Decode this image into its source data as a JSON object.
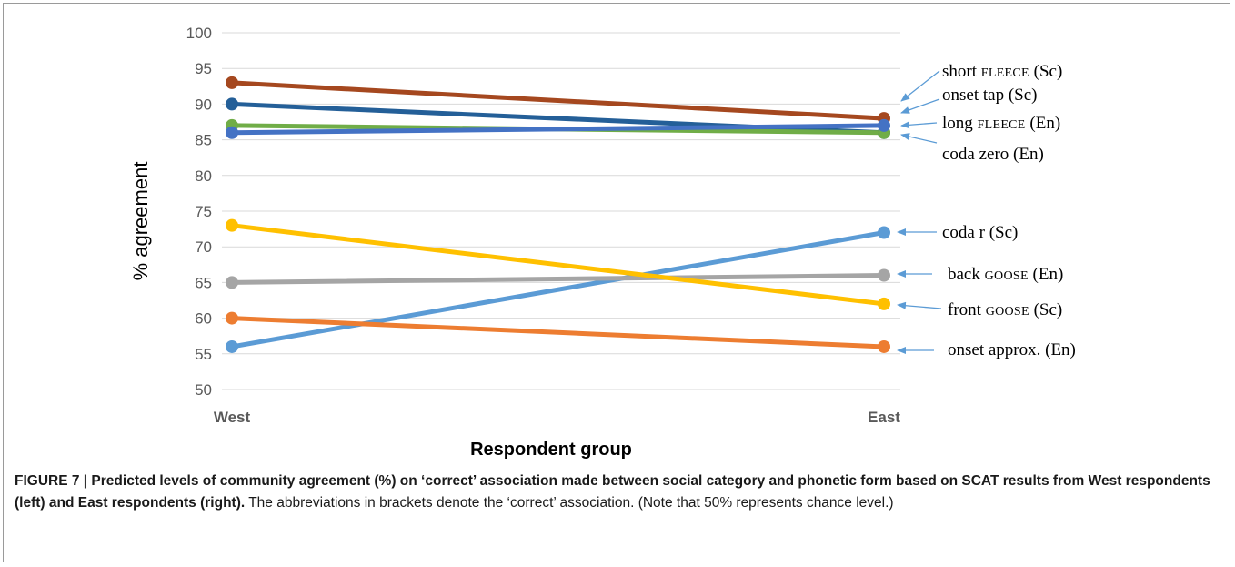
{
  "chart_data": {
    "type": "line",
    "categories": [
      "West",
      "East"
    ],
    "xlabel": "Respondent group",
    "ylabel": "% agreement",
    "ylim": [
      50,
      100
    ],
    "yticks": [
      50,
      55,
      60,
      65,
      70,
      75,
      80,
      85,
      90,
      95,
      100
    ],
    "grid": true,
    "series": [
      {
        "name": "short FLEECE (Sc)",
        "values": [
          93,
          88
        ],
        "color": "#a5481f"
      },
      {
        "name": "onset tap (Sc)",
        "values": [
          90,
          86
        ],
        "color": "#245f98"
      },
      {
        "name": "long FLEECE (En)",
        "values": [
          87,
          86
        ],
        "color": "#70ad47"
      },
      {
        "name": "coda zero (En)",
        "values": [
          86,
          87
        ],
        "color": "#4472c4"
      },
      {
        "name": "coda r (Sc)",
        "values": [
          56,
          72
        ],
        "color": "#5b9bd5"
      },
      {
        "name": "back GOOSE (En)",
        "values": [
          65,
          66
        ],
        "color": "#a5a5a5"
      },
      {
        "name": "front GOOSE (Sc)",
        "values": [
          73,
          62
        ],
        "color": "#ffc000"
      },
      {
        "name": "onset approx. (En)",
        "values": [
          60,
          56
        ],
        "color": "#ed7d31"
      }
    ],
    "annotations": [
      {
        "label": "short ",
        "smallcaps": "FLEECE",
        "suffix": " (Sc)"
      },
      {
        "label": "onset tap (Sc)",
        "smallcaps": "",
        "suffix": ""
      },
      {
        "label": "long ",
        "smallcaps": "FLEECE",
        "suffix": " (En)"
      },
      {
        "label": "coda zero (En)",
        "smallcaps": "",
        "suffix": ""
      },
      {
        "label": "coda r (Sc)",
        "smallcaps": "",
        "suffix": ""
      },
      {
        "label": "back ",
        "smallcaps": "GOOSE",
        "suffix": " (En)"
      },
      {
        "label": "front ",
        "smallcaps": "GOOSE",
        "suffix": " (Sc)"
      },
      {
        "label": "onset approx. (En)",
        "smallcaps": "",
        "suffix": ""
      }
    ],
    "annotation_arrow_color": "#5b9bd5"
  },
  "caption": {
    "bold": "FIGURE 7 | Predicted levels of community agreement (%) on ‘correct’ association made between social category and phonetic form based on SCAT results from West respondents (left) and East respondents (right).",
    "text": " The abbreviations in brackets denote the ‘correct’ association. (Note that 50% represents chance level.)"
  }
}
